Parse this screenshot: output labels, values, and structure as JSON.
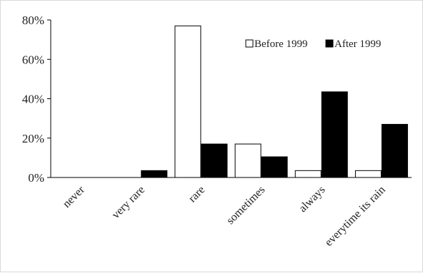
{
  "chart_data": {
    "type": "bar",
    "title": "",
    "xlabel": "",
    "ylabel": "",
    "categories": [
      "never",
      "very rare",
      "rare",
      "sometimes",
      "always",
      "everytime its rain"
    ],
    "series": [
      {
        "name": "Before 1999",
        "values": [
          0,
          0,
          77,
          17,
          3.5,
          3.5
        ],
        "fill": "#ffffff",
        "stroke": "#000000"
      },
      {
        "name": "After 1999",
        "values": [
          0,
          3.5,
          17,
          10.5,
          43.5,
          27
        ],
        "fill": "#000000",
        "stroke": "#000000"
      }
    ],
    "ylim": [
      0,
      80
    ],
    "yticks": [
      0,
      20,
      40,
      60,
      80
    ],
    "ytick_labels": [
      "0%",
      "20%",
      "40%",
      "60%",
      "80%"
    ],
    "grid": false,
    "legend_position": "top-right"
  }
}
